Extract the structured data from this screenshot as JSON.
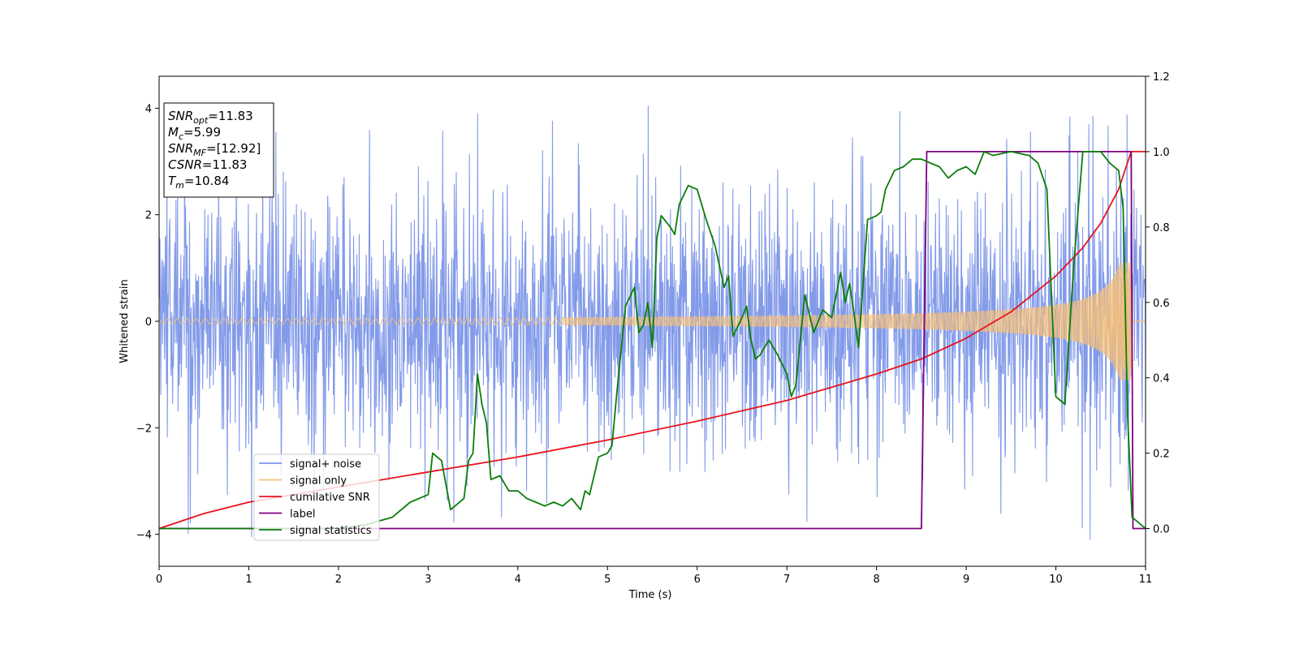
{
  "chart_data": {
    "type": "line",
    "xlabel": "Time (s)",
    "ylabel": "Whitened strain",
    "xlim": [
      0,
      11
    ],
    "ylim": [
      -4.6,
      4.6
    ],
    "y2lim": [
      -0.1,
      1.2
    ],
    "x_ticks": [
      "0",
      "1",
      "2",
      "3",
      "4",
      "5",
      "6",
      "7",
      "8",
      "9",
      "10",
      "11"
    ],
    "y_ticks": [
      "−4",
      "−2",
      "0",
      "2",
      "4"
    ],
    "y2_ticks": [
      "0.0",
      "0.2",
      "0.4",
      "0.6",
      "0.8",
      "1.0",
      "1.2"
    ],
    "grid": false,
    "legend_position": "lower-left",
    "annotation": {
      "lines": [
        {
          "base": "SNR",
          "sub": "opt",
          "value": "=11.83"
        },
        {
          "base": "M",
          "sub": "c",
          "value": "=5.99"
        },
        {
          "base": "SNR",
          "sub": "MF",
          "value": "=[12.92]"
        },
        {
          "base": "CSNR",
          "sub": "",
          "value": "=11.83"
        },
        {
          "base": "T",
          "sub": "m",
          "value": "=10.84"
        }
      ]
    },
    "series": [
      {
        "name": "signal+ noise",
        "axis": "left",
        "color": "#7b95e8",
        "description": "noise band with amplitude about ±2.3, occasional spikes up to ±4",
        "envelope_typical": 2.3,
        "envelope_peak": 4.1
      },
      {
        "name": "signal only",
        "axis": "left",
        "color": "#f5c07a",
        "description": "chirp growing from ±0.05 to about ±1.1 at t=10.84 s",
        "amplitude_start": 0.05,
        "amplitude_end": 1.1,
        "merger_time": 10.84
      },
      {
        "name": "cumilative SNR",
        "axis": "right",
        "color": "#e8131b",
        "x": [
          0,
          0.5,
          1,
          2,
          3,
          4,
          5,
          6,
          7,
          8,
          8.5,
          9,
          9.5,
          10,
          10.3,
          10.5,
          10.7,
          10.84,
          11
        ],
        "y": [
          0.0,
          0.04,
          0.07,
          0.11,
          0.15,
          0.19,
          0.235,
          0.285,
          0.34,
          0.41,
          0.45,
          0.505,
          0.575,
          0.67,
          0.745,
          0.81,
          0.9,
          1.0,
          1.0
        ]
      },
      {
        "name": "label",
        "axis": "right",
        "color": "#800080",
        "x": [
          0,
          8.5,
          8.56,
          10.84,
          10.86,
          11
        ],
        "y": [
          0,
          0,
          1,
          1,
          0,
          0
        ]
      },
      {
        "name": "signal statistics",
        "axis": "right",
        "color": "#0a7d0a",
        "x": [
          0,
          1,
          2,
          2.3,
          2.6,
          2.8,
          3.0,
          3.05,
          3.15,
          3.25,
          3.4,
          3.45,
          3.5,
          3.55,
          3.6,
          3.65,
          3.7,
          3.8,
          3.9,
          4.0,
          4.1,
          4.2,
          4.3,
          4.4,
          4.5,
          4.6,
          4.7,
          4.75,
          4.8,
          4.9,
          5.0,
          5.05,
          5.1,
          5.2,
          5.3,
          5.35,
          5.4,
          5.45,
          5.5,
          5.55,
          5.6,
          5.7,
          5.75,
          5.8,
          5.9,
          6.0,
          6.05,
          6.1,
          6.2,
          6.3,
          6.35,
          6.4,
          6.5,
          6.55,
          6.6,
          6.65,
          6.7,
          6.8,
          6.85,
          6.9,
          7.0,
          7.05,
          7.1,
          7.2,
          7.3,
          7.4,
          7.5,
          7.6,
          7.65,
          7.7,
          7.75,
          7.8,
          7.9,
          8.0,
          8.05,
          8.1,
          8.2,
          8.3,
          8.4,
          8.5,
          8.6,
          8.7,
          8.8,
          8.9,
          9.0,
          9.1,
          9.2,
          9.3,
          9.5,
          9.7,
          9.8,
          9.9,
          10.0,
          10.1,
          10.2,
          10.3,
          10.4,
          10.5,
          10.6,
          10.7,
          10.75,
          10.8,
          10.85,
          10.9,
          11.0
        ],
        "y": [
          0.0,
          0.0,
          0.0,
          0.01,
          0.03,
          0.07,
          0.09,
          0.2,
          0.18,
          0.05,
          0.08,
          0.18,
          0.2,
          0.41,
          0.33,
          0.28,
          0.13,
          0.14,
          0.1,
          0.1,
          0.08,
          0.07,
          0.06,
          0.07,
          0.06,
          0.08,
          0.05,
          0.1,
          0.09,
          0.19,
          0.2,
          0.22,
          0.35,
          0.59,
          0.64,
          0.52,
          0.54,
          0.6,
          0.48,
          0.77,
          0.83,
          0.8,
          0.78,
          0.86,
          0.91,
          0.9,
          0.86,
          0.82,
          0.75,
          0.64,
          0.67,
          0.51,
          0.56,
          0.59,
          0.5,
          0.45,
          0.46,
          0.5,
          0.48,
          0.46,
          0.41,
          0.35,
          0.38,
          0.62,
          0.52,
          0.58,
          0.56,
          0.68,
          0.6,
          0.65,
          0.57,
          0.48,
          0.82,
          0.83,
          0.84,
          0.9,
          0.95,
          0.96,
          0.98,
          0.98,
          0.97,
          0.96,
          0.93,
          0.95,
          0.96,
          0.94,
          1.0,
          0.99,
          1.0,
          0.99,
          0.97,
          0.9,
          0.35,
          0.33,
          0.7,
          1.0,
          1.0,
          1.0,
          0.97,
          0.95,
          0.85,
          0.3,
          0.03,
          0.02,
          0.0
        ]
      }
    ]
  }
}
